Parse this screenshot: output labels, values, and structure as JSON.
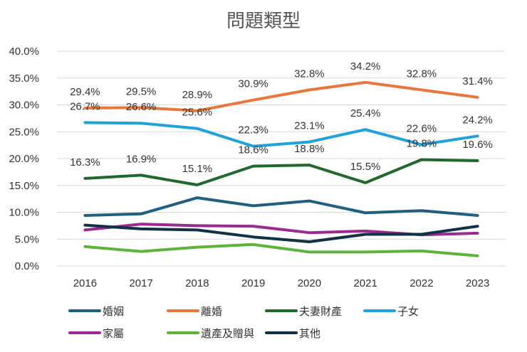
{
  "chart_data": {
    "type": "line",
    "title": "問題類型",
    "xlabel": "",
    "ylabel": "",
    "categories": [
      "2016",
      "2017",
      "2018",
      "2019",
      "2020",
      "2021",
      "2022",
      "2023"
    ],
    "ylim": [
      0,
      40
    ],
    "yticks": [
      "0.0%",
      "5.0%",
      "10.0%",
      "15.0%",
      "20.0%",
      "25.0%",
      "30.0%",
      "35.0%",
      "40.0%"
    ],
    "grid": true,
    "legend_position": "bottom",
    "series": [
      {
        "name": "婚姻",
        "color": "#1f5f80",
        "values": [
          9.4,
          9.7,
          12.7,
          11.2,
          12.1,
          9.9,
          10.3,
          9.4
        ],
        "labels": []
      },
      {
        "name": "離婚",
        "color": "#e8773a",
        "values": [
          29.4,
          29.5,
          28.9,
          30.9,
          32.8,
          34.2,
          32.8,
          31.4
        ],
        "labels": [
          "29.4%",
          "29.5%",
          "28.9%",
          "30.9%",
          "32.8%",
          "34.2%",
          "32.8%",
          "31.4%"
        ]
      },
      {
        "name": "夫妻財產",
        "color": "#20692c",
        "values": [
          16.3,
          16.9,
          15.1,
          18.6,
          18.8,
          15.5,
          19.8,
          19.6
        ],
        "labels": [
          "16.3%",
          "16.9%",
          "15.1%",
          "18.6%",
          "18.8%",
          "15.5%",
          "19.8%",
          "19.6%"
        ]
      },
      {
        "name": "子女",
        "color": "#1fa3dc",
        "values": [
          26.7,
          26.6,
          25.6,
          22.3,
          23.1,
          25.4,
          22.6,
          24.2
        ],
        "labels": [
          "26.7%",
          "26.6%",
          "25.6%",
          "22.3%",
          "23.1%",
          "25.4%",
          "22.6%",
          "24.2%"
        ]
      },
      {
        "name": "家屬",
        "color": "#9b2a92",
        "values": [
          6.7,
          7.8,
          7.5,
          7.4,
          6.2,
          6.5,
          5.8,
          6.1
        ],
        "labels": []
      },
      {
        "name": "遺產及贈與",
        "color": "#5db43b",
        "values": [
          3.6,
          2.7,
          3.5,
          4.0,
          2.6,
          2.6,
          2.8,
          1.9
        ],
        "labels": []
      },
      {
        "name": "其他",
        "color": "#0f3248",
        "values": [
          7.6,
          6.9,
          6.7,
          5.4,
          4.5,
          5.9,
          5.9,
          7.4
        ],
        "labels": []
      }
    ]
  }
}
